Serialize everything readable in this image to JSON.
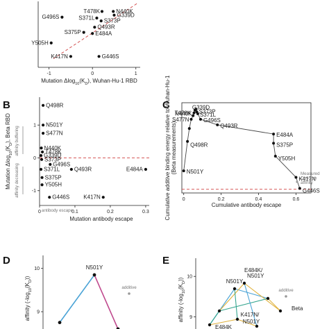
{
  "chart_data": [
    {
      "type": "scatter",
      "panel_letter": "",
      "xlabel_parts": [
        "Mutation Δlog",
        "10",
        "(K",
        "D",
        "), Wuhan-Hu-1 RBD"
      ],
      "ylabel": "",
      "xlim": [
        -1.25,
        1.1
      ],
      "ylim": [
        -1.2,
        1.1
      ],
      "x_ticks": [
        -1,
        0,
        1
      ],
      "y_ticks": [],
      "reference_line": "diagonal",
      "points": [
        {
          "label": "T478K",
          "x": 0.22,
          "y": 0.75
        },
        {
          "label": "N440K",
          "x": 0.48,
          "y": 0.75
        },
        {
          "label": "G339D",
          "x": 0.5,
          "y": 0.62
        },
        {
          "label": "S371L",
          "x": 0.1,
          "y": 0.52
        },
        {
          "label": "G496S",
          "x": -0.7,
          "y": 0.55
        },
        {
          "label": "S373P",
          "x": 0.2,
          "y": 0.42
        },
        {
          "label": "Q493R",
          "x": 0.05,
          "y": 0.2
        },
        {
          "label": "S375P",
          "x": -0.2,
          "y": 0.02
        },
        {
          "label": "E484A",
          "x": 0.0,
          "y": -0.02
        },
        {
          "label": "Y505H",
          "x": -0.95,
          "y": -0.35
        },
        {
          "label": "K417N",
          "x": -0.5,
          "y": -0.82
        },
        {
          "label": "G446S",
          "x": 0.15,
          "y": -0.82
        }
      ]
    },
    {
      "type": "scatter",
      "panel_letter": "B",
      "xlabel": "Mutation antibody escape",
      "ylabel_parts": [
        "Mutation Δlog",
        "10",
        "(K",
        "D",
        "), Beta RBD"
      ],
      "xlim": [
        0,
        0.31
      ],
      "ylim": [
        -1.45,
        1.85
      ],
      "x_ticks": [
        0,
        0.1,
        0.2,
        0.3
      ],
      "y_ticks": [
        -1,
        0,
        1
      ],
      "reference_line": "y=0",
      "side_labels": [
        "affinity buffering",
        "affinity decreasing"
      ],
      "x_side_label": "antibody escape",
      "points": [
        {
          "label": "Q498R",
          "x": 0.01,
          "y": 1.6
        },
        {
          "label": "N501Y",
          "x": 0.01,
          "y": 1.0
        },
        {
          "label": "S477N",
          "x": 0.01,
          "y": 0.75
        },
        {
          "label": "N440K",
          "x": 0.005,
          "y": 0.3
        },
        {
          "label": "T478K",
          "x": 0.008,
          "y": 0.18
        },
        {
          "label": "G339D",
          "x": 0.004,
          "y": 0.07
        },
        {
          "label": "S373P",
          "x": 0.006,
          "y": -0.05
        },
        {
          "label": "G496S",
          "x": 0.03,
          "y": -0.2
        },
        {
          "label": "S371L",
          "x": 0.004,
          "y": -0.35
        },
        {
          "label": "Q493R",
          "x": 0.09,
          "y": -0.35
        },
        {
          "label": "E484A",
          "x": 0.3,
          "y": -0.35
        },
        {
          "label": "S375P",
          "x": 0.007,
          "y": -0.6
        },
        {
          "label": "Y505H",
          "x": 0.007,
          "y": -0.82
        },
        {
          "label": "G446S",
          "x": 0.028,
          "y": -1.2
        },
        {
          "label": "K417N",
          "x": 0.18,
          "y": -1.2
        }
      ]
    },
    {
      "type": "line",
      "panel_letter": "C",
      "xlabel": "Cumulative antibody escape",
      "ylabel": "Cumulative additive binding energy relative to Wuhan-Hu-1 (Beta measurements)",
      "xlim": [
        -0.01,
        0.68
      ],
      "ylim": [
        -0.2,
        4.7
      ],
      "x_ticks": [
        0,
        0.2,
        0.4,
        0.6
      ],
      "y_ticks": [],
      "reference_line": "y=0",
      "legend": "Measured Omicron affinity",
      "points": [
        {
          "label": "N501Y",
          "x": 0.0,
          "y": 1.0
        },
        {
          "label": "Q498R",
          "x": 0.02,
          "y": 2.6
        },
        {
          "label": "",
          "x": 0.03,
          "y": 3.3
        },
        {
          "label": "S477N",
          "x": 0.04,
          "y": 3.8
        },
        {
          "label": "T478K",
          "x": 0.05,
          "y": 4.0
        },
        {
          "label": "N440K",
          "x": 0.055,
          "y": 4.15
        },
        {
          "label": "G339D",
          "x": 0.06,
          "y": 4.3
        },
        {
          "label": "",
          "x": 0.065,
          "y": 4.35
        },
        {
          "label": "S373P",
          "x": 0.07,
          "y": 4.2
        },
        {
          "label": "S371L",
          "x": 0.075,
          "y": 4.1
        },
        {
          "label": "G496S",
          "x": 0.09,
          "y": 3.8
        },
        {
          "label": "Q493R",
          "x": 0.18,
          "y": 3.5
        },
        {
          "label": "E484A",
          "x": 0.48,
          "y": 3.0
        },
        {
          "label": "S375P",
          "x": 0.48,
          "y": 2.5
        },
        {
          "label": "Y505H",
          "x": 0.49,
          "y": 1.8
        },
        {
          "label": "K417N",
          "x": 0.6,
          "y": 0.65
        },
        {
          "label": "G446S",
          "x": 0.62,
          "y": 0.05
        }
      ]
    },
    {
      "type": "line",
      "panel_letter": "D",
      "xlabel": "",
      "ylabel_parts": [
        "affinity (-log",
        "10",
        "(K",
        "D",
        "))"
      ],
      "ylim": [
        8.6,
        10.3
      ],
      "y_ticks": [
        9,
        10
      ],
      "note": "additive",
      "points": [
        {
          "label": "",
          "x": 0,
          "y": 8.75
        },
        {
          "label": "N501Y",
          "x": 1,
          "y": 9.85
        },
        {
          "label": "",
          "x": 2,
          "y": 8.6
        }
      ],
      "colors": {
        "up": "#4aa3d6",
        "down": "#c04a8e"
      }
    },
    {
      "type": "line",
      "panel_letter": "E",
      "xlabel": "",
      "ylabel_parts": [
        "affinity (-log",
        "10",
        "(K",
        "D",
        "))"
      ],
      "ylim": [
        8.7,
        10.45
      ],
      "y_ticks": [
        9,
        10
      ],
      "note": "additive",
      "labels": [
        "E484K/",
        "N501Y",
        "N501Y",
        "Beta",
        "K417N/",
        "N501Y",
        "E484K"
      ],
      "colors": {
        "blue": "#4aa3d6",
        "yellow": "#e0b13a",
        "teal": "#33a58e"
      }
    }
  ]
}
